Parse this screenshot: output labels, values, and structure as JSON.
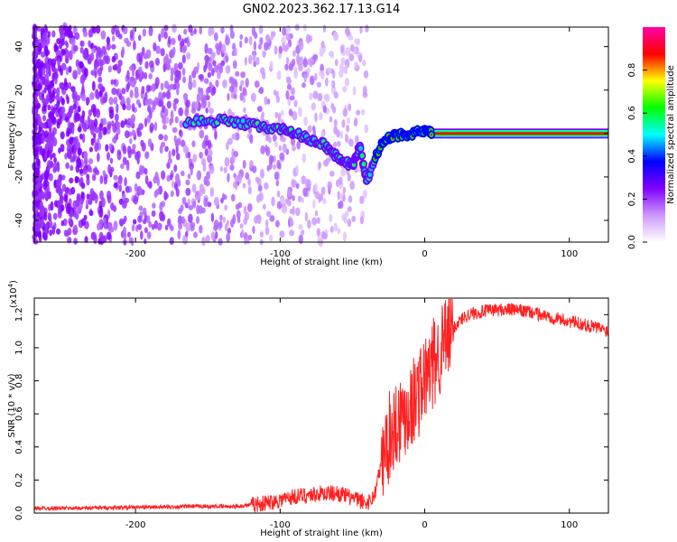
{
  "figure_title": "GN02.2023.362.17.13.G14",
  "chart_data": [
    {
      "type": "heatmap",
      "xlabel": "Height of straight line (km)",
      "ylabel": "Frequency (Hz)",
      "xlim": [
        -270,
        127
      ],
      "ylim": [
        -50,
        49
      ],
      "xticks": [
        -200,
        -100,
        0,
        100
      ],
      "xtick_labels": [
        "-200",
        "-100",
        "0",
        "100"
      ],
      "yticks": [
        -40,
        -20,
        0,
        20,
        40
      ],
      "ytick_labels": [
        "-40",
        "-20",
        "0",
        "20",
        "40"
      ],
      "colorbar": {
        "label": "Normalized spectral amplitude",
        "range": [
          0,
          1
        ],
        "ticks": [
          0.0,
          0.2,
          0.4,
          0.6,
          0.8
        ],
        "tick_labels": [
          "0.0",
          "0.2",
          "0.4",
          "0.6",
          "0.8"
        ],
        "colors": [
          "#ffffff",
          "#cc99ff",
          "#7f00ff",
          "#0000ff",
          "#00ffff",
          "#00ff00",
          "#ffff00",
          "#ff0000",
          "#ff00aa"
        ]
      },
      "ridge": [
        {
          "x": -165,
          "y": 5
        },
        {
          "x": -140,
          "y": 6
        },
        {
          "x": -120,
          "y": 4
        },
        {
          "x": -100,
          "y": 2
        },
        {
          "x": -85,
          "y": -1
        },
        {
          "x": -70,
          "y": -5
        },
        {
          "x": -60,
          "y": -11
        },
        {
          "x": -50,
          "y": -15
        },
        {
          "x": -45,
          "y": -6
        },
        {
          "x": -40,
          "y": -22
        },
        {
          "x": -30,
          "y": -4
        },
        {
          "x": -20,
          "y": -1
        },
        {
          "x": -10,
          "y": 0
        },
        {
          "x": 0,
          "y": 1
        },
        {
          "x": 5,
          "y": 0
        },
        {
          "x": 127,
          "y": 0
        }
      ]
    },
    {
      "type": "line",
      "xlabel": "Height of straight line (km)",
      "ylabel": "SNR (10 * v/v)",
      "y_multiplier": "(x10",
      "y_multiplier_exp": "4",
      "y_multiplier_close": ")",
      "xlim": [
        -270,
        127
      ],
      "ylim": [
        0,
        1.3
      ],
      "xticks": [
        -200,
        -100,
        0,
        100
      ],
      "xtick_labels": [
        "-200",
        "-100",
        "0",
        "100"
      ],
      "yticks": [
        0.0,
        0.2,
        0.4,
        0.6,
        0.8,
        1.0,
        1.2
      ],
      "ytick_labels": [
        "0.0",
        "0.2",
        "0.4",
        "0.6",
        "0.8",
        "1.0",
        "1.2"
      ],
      "color": "#ff2020",
      "series": [
        {
          "x": [
            -270,
            -240,
            -200,
            -160,
            -130,
            -110,
            -100,
            -90,
            -80,
            -70,
            -60,
            -50,
            -40,
            -35,
            -30,
            -25,
            -20,
            -15,
            -10,
            -5,
            0,
            5,
            10,
            15,
            20,
            25,
            30,
            40,
            50,
            60,
            70,
            80,
            90,
            100,
            110,
            120,
            127
          ],
          "y": [
            0.03,
            0.03,
            0.035,
            0.04,
            0.04,
            0.06,
            0.08,
            0.1,
            0.11,
            0.12,
            0.12,
            0.09,
            0.06,
            0.1,
            0.3,
            0.45,
            0.55,
            0.6,
            0.65,
            0.72,
            0.8,
            0.88,
            0.97,
            1.05,
            1.12,
            1.17,
            1.2,
            1.22,
            1.23,
            1.23,
            1.22,
            1.2,
            1.18,
            1.16,
            1.14,
            1.12,
            1.1
          ]
        }
      ]
    }
  ]
}
